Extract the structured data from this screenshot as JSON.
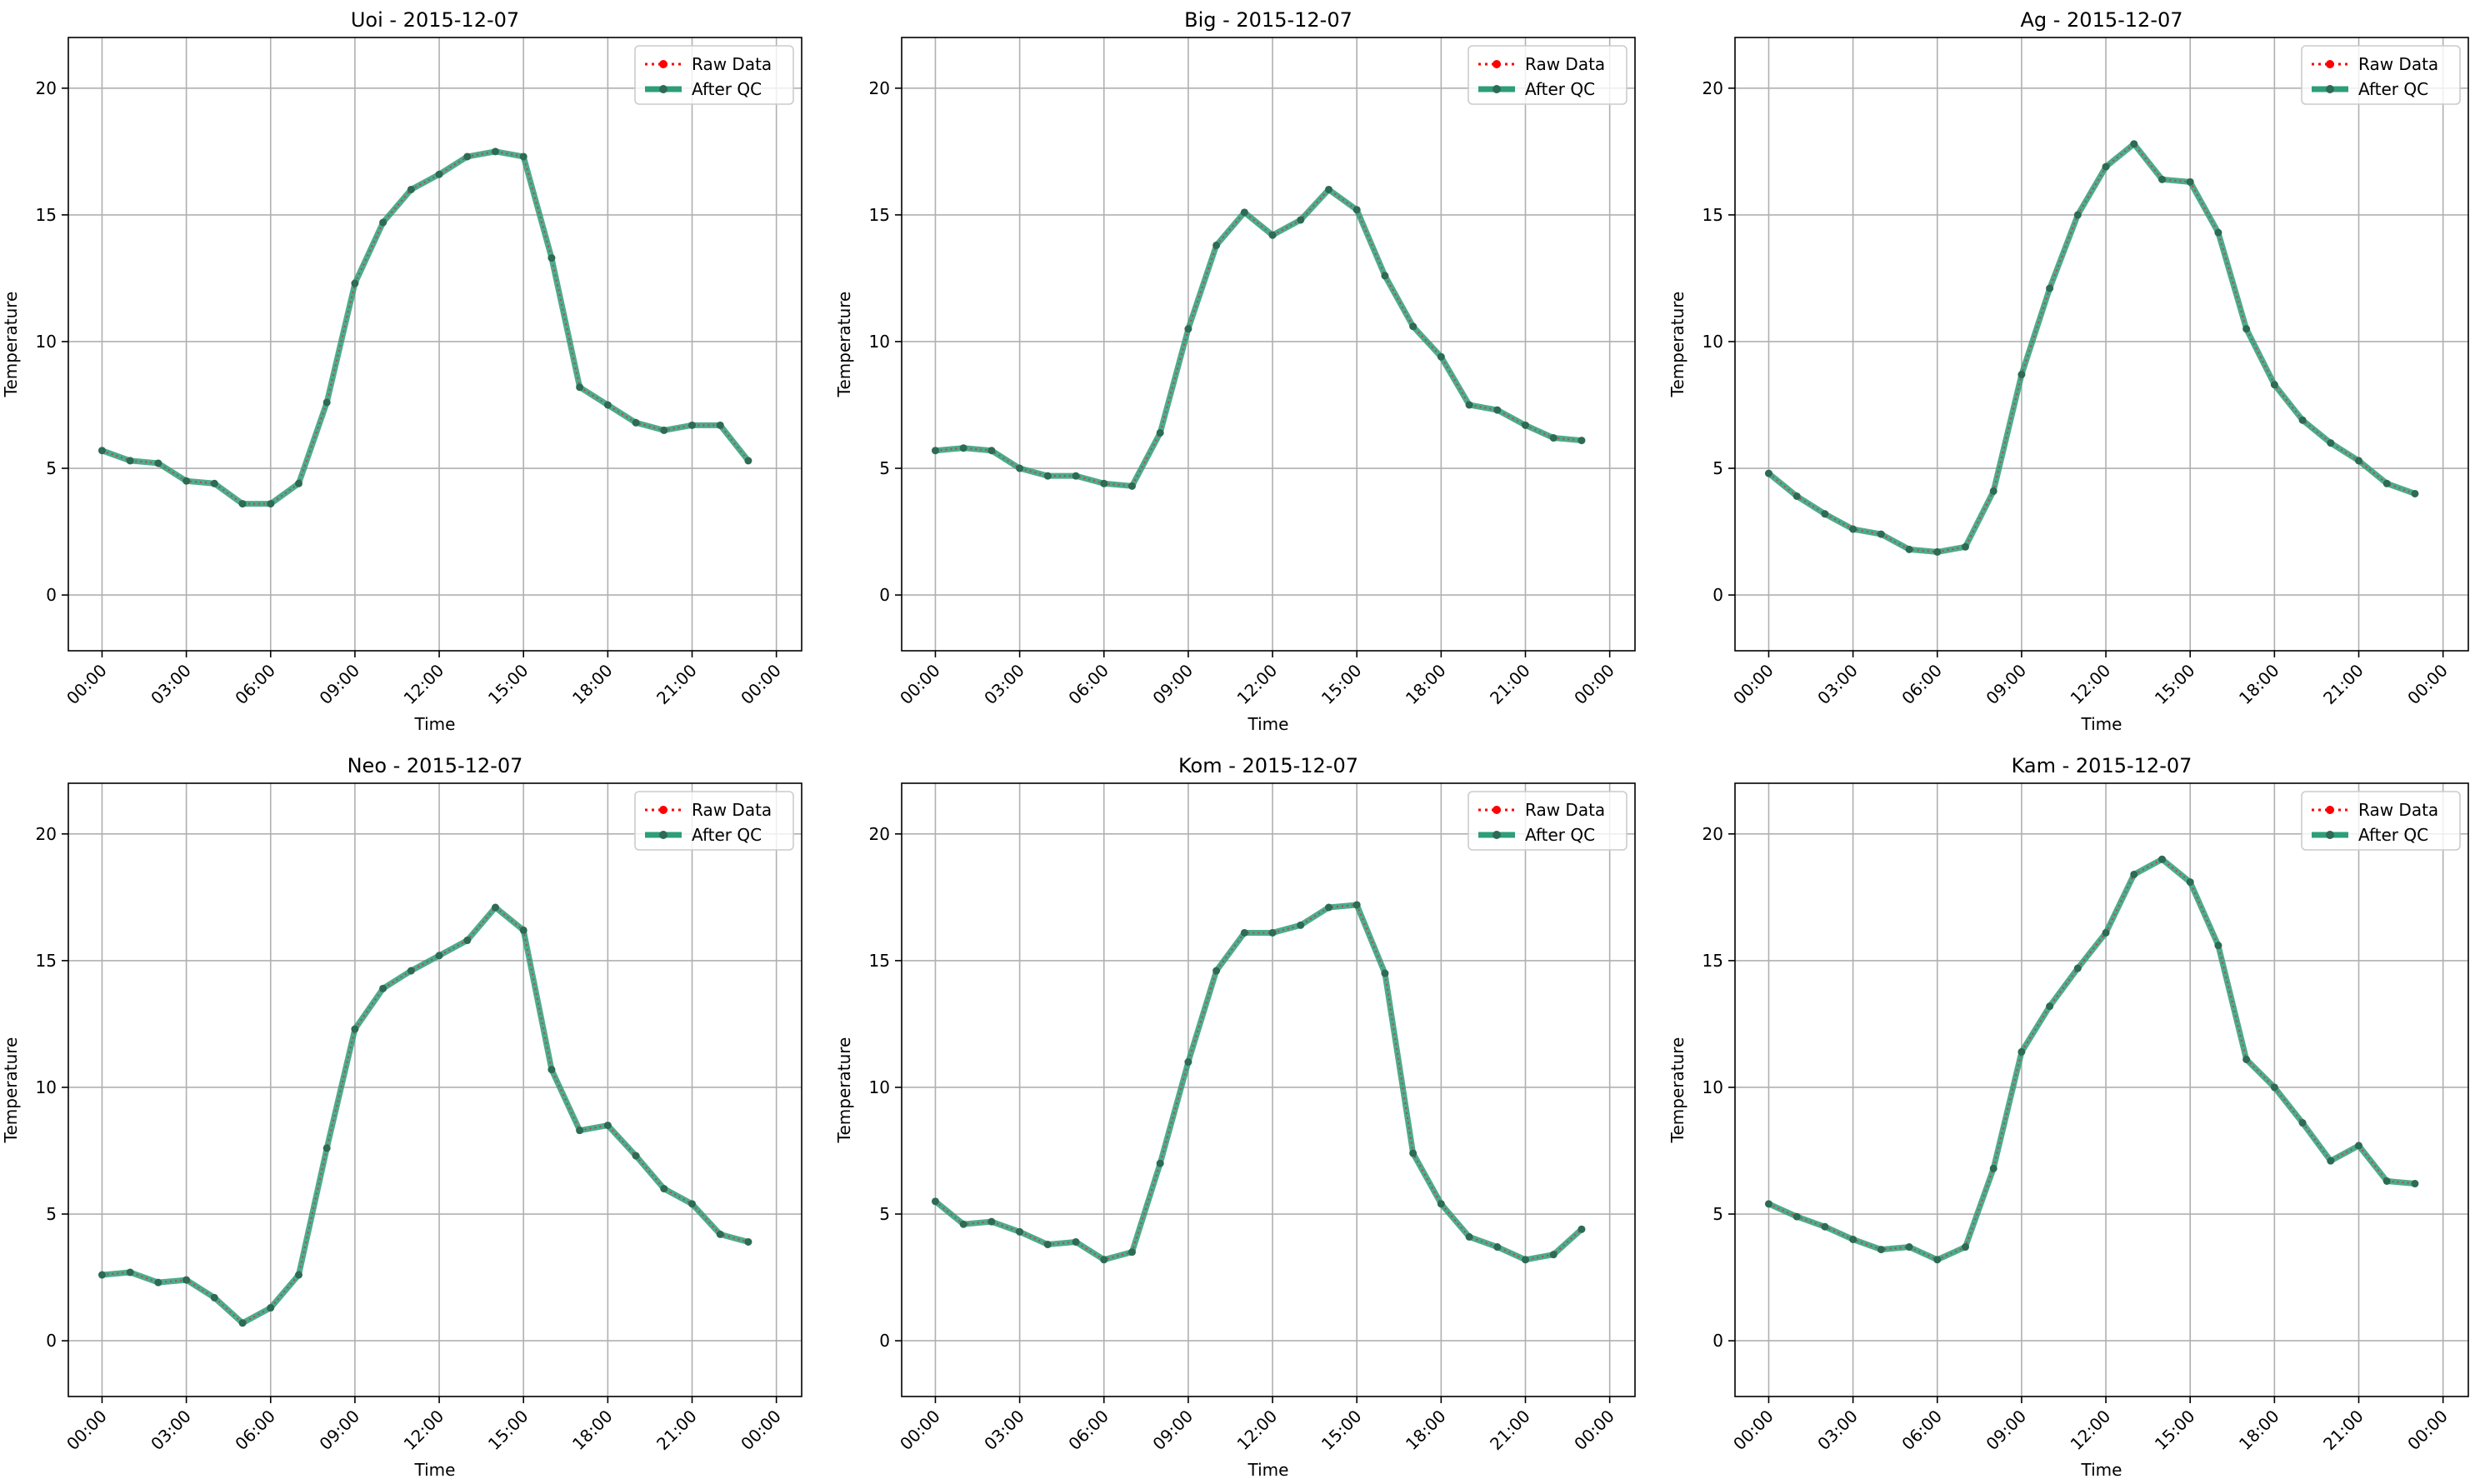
{
  "figure": {
    "background": "#ffffff",
    "colors": {
      "raw": "#ff0000",
      "qc": "#2e9e7a",
      "qc_marker": "#2d6b55",
      "grid": "#b0b0b0",
      "axis": "#000000"
    }
  },
  "chart_data": [
    {
      "type": "line",
      "title": "Uoi - 2015-12-07",
      "xlabel": "Time",
      "ylabel": "Temperature",
      "x_ticks": [
        "00:00",
        "03:00",
        "06:00",
        "09:00",
        "12:00",
        "15:00",
        "18:00",
        "21:00",
        "00:00"
      ],
      "y_ticks": [
        "0",
        "5",
        "10",
        "15",
        "20"
      ],
      "xlim_hours": [
        -1.2,
        24.9
      ],
      "ylim": [
        -2.2,
        22.0
      ],
      "grid": true,
      "legend": "top-right",
      "x_hours": [
        0,
        1,
        2,
        3,
        4,
        5,
        6,
        7,
        8,
        9,
        10,
        11,
        12,
        13,
        14,
        15,
        16,
        17,
        18,
        19,
        20,
        21,
        22,
        23
      ],
      "series": [
        {
          "name": "Raw Data",
          "style": "dotted",
          "values": [
            5.7,
            5.3,
            5.2,
            4.5,
            4.4,
            3.6,
            3.6,
            4.4,
            7.6,
            12.3,
            14.7,
            16.0,
            16.6,
            17.3,
            17.5,
            17.3,
            13.3,
            8.2,
            7.5,
            6.8,
            6.5,
            6.7,
            6.7,
            5.3
          ]
        },
        {
          "name": "After QC",
          "style": "solid",
          "values": [
            5.7,
            5.3,
            5.2,
            4.5,
            4.4,
            3.6,
            3.6,
            4.4,
            7.6,
            12.3,
            14.7,
            16.0,
            16.6,
            17.3,
            17.5,
            17.3,
            13.3,
            8.2,
            7.5,
            6.8,
            6.5,
            6.7,
            6.7,
            5.3
          ]
        }
      ]
    },
    {
      "type": "line",
      "title": "Big - 2015-12-07",
      "xlabel": "Time",
      "ylabel": "Temperature",
      "x_ticks": [
        "00:00",
        "03:00",
        "06:00",
        "09:00",
        "12:00",
        "15:00",
        "18:00",
        "21:00",
        "00:00"
      ],
      "y_ticks": [
        "0",
        "5",
        "10",
        "15",
        "20"
      ],
      "xlim_hours": [
        -1.2,
        24.9
      ],
      "ylim": [
        -2.2,
        22.0
      ],
      "grid": true,
      "legend": "top-right",
      "x_hours": [
        0,
        1,
        2,
        3,
        4,
        5,
        6,
        7,
        8,
        9,
        10,
        11,
        12,
        13,
        14,
        15,
        16,
        17,
        18,
        19,
        20,
        21,
        22,
        23
      ],
      "series": [
        {
          "name": "Raw Data",
          "style": "dotted",
          "values": [
            5.7,
            5.8,
            5.7,
            5.0,
            4.7,
            4.7,
            4.4,
            4.3,
            6.4,
            10.5,
            13.8,
            15.1,
            14.2,
            14.8,
            16.0,
            15.2,
            12.6,
            10.6,
            9.4,
            7.5,
            7.3,
            6.7,
            6.2,
            6.1
          ]
        },
        {
          "name": "After QC",
          "style": "solid",
          "values": [
            5.7,
            5.8,
            5.7,
            5.0,
            4.7,
            4.7,
            4.4,
            4.3,
            6.4,
            10.5,
            13.8,
            15.1,
            14.2,
            14.8,
            16.0,
            15.2,
            12.6,
            10.6,
            9.4,
            7.5,
            7.3,
            6.7,
            6.2,
            6.1
          ]
        }
      ]
    },
    {
      "type": "line",
      "title": "Ag - 2015-12-07",
      "xlabel": "Time",
      "ylabel": "Temperature",
      "x_ticks": [
        "00:00",
        "03:00",
        "06:00",
        "09:00",
        "12:00",
        "15:00",
        "18:00",
        "21:00",
        "00:00"
      ],
      "y_ticks": [
        "0",
        "5",
        "10",
        "15",
        "20"
      ],
      "xlim_hours": [
        -1.2,
        24.9
      ],
      "ylim": [
        -2.2,
        22.0
      ],
      "grid": true,
      "legend": "top-right",
      "x_hours": [
        0,
        1,
        2,
        3,
        4,
        5,
        6,
        7,
        8,
        9,
        10,
        11,
        12,
        13,
        14,
        15,
        16,
        17,
        18,
        19,
        20,
        21,
        22,
        23
      ],
      "series": [
        {
          "name": "Raw Data",
          "style": "dotted",
          "values": [
            4.8,
            3.9,
            3.2,
            2.6,
            2.4,
            1.8,
            1.7,
            1.9,
            4.1,
            8.7,
            12.1,
            15.0,
            16.9,
            17.8,
            16.4,
            16.3,
            14.3,
            10.5,
            8.3,
            6.9,
            6.0,
            5.3,
            4.4,
            4.0
          ]
        },
        {
          "name": "After QC",
          "style": "solid",
          "values": [
            4.8,
            3.9,
            3.2,
            2.6,
            2.4,
            1.8,
            1.7,
            1.9,
            4.1,
            8.7,
            12.1,
            15.0,
            16.9,
            17.8,
            16.4,
            16.3,
            14.3,
            10.5,
            8.3,
            6.9,
            6.0,
            5.3,
            4.4,
            4.0
          ]
        }
      ]
    },
    {
      "type": "line",
      "title": "Neo - 2015-12-07",
      "xlabel": "Time",
      "ylabel": "Temperature",
      "x_ticks": [
        "00:00",
        "03:00",
        "06:00",
        "09:00",
        "12:00",
        "15:00",
        "18:00",
        "21:00",
        "00:00"
      ],
      "y_ticks": [
        "0",
        "5",
        "10",
        "15",
        "20"
      ],
      "xlim_hours": [
        -1.2,
        24.9
      ],
      "ylim": [
        -2.2,
        22.0
      ],
      "grid": true,
      "legend": "top-right",
      "x_hours": [
        0,
        1,
        2,
        3,
        4,
        5,
        6,
        7,
        8,
        9,
        10,
        11,
        12,
        13,
        14,
        15,
        16,
        17,
        18,
        19,
        20,
        21,
        22,
        23
      ],
      "series": [
        {
          "name": "Raw Data",
          "style": "dotted",
          "values": [
            2.6,
            2.7,
            2.3,
            2.4,
            1.7,
            0.7,
            1.3,
            2.6,
            7.6,
            12.3,
            13.9,
            14.6,
            15.2,
            15.8,
            17.1,
            16.2,
            10.7,
            8.3,
            8.5,
            7.3,
            6.0,
            5.4,
            4.2,
            3.9
          ]
        },
        {
          "name": "After QC",
          "style": "solid",
          "values": [
            2.6,
            2.7,
            2.3,
            2.4,
            1.7,
            0.7,
            1.3,
            2.6,
            7.6,
            12.3,
            13.9,
            14.6,
            15.2,
            15.8,
            17.1,
            16.2,
            10.7,
            8.3,
            8.5,
            7.3,
            6.0,
            5.4,
            4.2,
            3.9
          ]
        }
      ]
    },
    {
      "type": "line",
      "title": "Kom - 2015-12-07",
      "xlabel": "Time",
      "ylabel": "Temperature",
      "x_ticks": [
        "00:00",
        "03:00",
        "06:00",
        "09:00",
        "12:00",
        "15:00",
        "18:00",
        "21:00",
        "00:00"
      ],
      "y_ticks": [
        "0",
        "5",
        "10",
        "15",
        "20"
      ],
      "xlim_hours": [
        -1.2,
        24.9
      ],
      "ylim": [
        -2.2,
        22.0
      ],
      "grid": true,
      "legend": "top-right",
      "x_hours": [
        0,
        1,
        2,
        3,
        4,
        5,
        6,
        7,
        8,
        9,
        10,
        11,
        12,
        13,
        14,
        15,
        16,
        17,
        18,
        19,
        20,
        21,
        22,
        23
      ],
      "series": [
        {
          "name": "Raw Data",
          "style": "dotted",
          "values": [
            5.5,
            4.6,
            4.7,
            4.3,
            3.8,
            3.9,
            3.2,
            3.5,
            7.0,
            11.0,
            14.6,
            16.1,
            16.1,
            16.4,
            17.1,
            17.2,
            14.5,
            7.4,
            5.4,
            4.1,
            3.7,
            3.2,
            3.4,
            4.4
          ]
        },
        {
          "name": "After QC",
          "style": "solid",
          "values": [
            5.5,
            4.6,
            4.7,
            4.3,
            3.8,
            3.9,
            3.2,
            3.5,
            7.0,
            11.0,
            14.6,
            16.1,
            16.1,
            16.4,
            17.1,
            17.2,
            14.5,
            7.4,
            5.4,
            4.1,
            3.7,
            3.2,
            3.4,
            4.4
          ]
        }
      ]
    },
    {
      "type": "line",
      "title": "Kam - 2015-12-07",
      "xlabel": "Time",
      "ylabel": "Temperature",
      "x_ticks": [
        "00:00",
        "03:00",
        "06:00",
        "09:00",
        "12:00",
        "15:00",
        "18:00",
        "21:00",
        "00:00"
      ],
      "y_ticks": [
        "0",
        "5",
        "10",
        "15",
        "20"
      ],
      "xlim_hours": [
        -1.2,
        24.9
      ],
      "ylim": [
        -2.2,
        22.0
      ],
      "grid": true,
      "legend": "top-right",
      "x_hours": [
        0,
        1,
        2,
        3,
        4,
        5,
        6,
        7,
        8,
        9,
        10,
        11,
        12,
        13,
        14,
        15,
        16,
        17,
        18,
        19,
        20,
        21,
        22,
        23
      ],
      "series": [
        {
          "name": "Raw Data",
          "style": "dotted",
          "values": [
            5.4,
            4.9,
            4.5,
            4.0,
            3.6,
            3.7,
            3.2,
            3.7,
            6.8,
            11.4,
            13.2,
            14.7,
            16.1,
            18.4,
            19.0,
            18.1,
            15.6,
            11.1,
            10.0,
            8.6,
            7.1,
            7.7,
            6.3,
            6.2
          ]
        },
        {
          "name": "After QC",
          "style": "solid",
          "values": [
            5.4,
            4.9,
            4.5,
            4.0,
            3.6,
            3.7,
            3.2,
            3.7,
            6.8,
            11.4,
            13.2,
            14.7,
            16.1,
            18.4,
            19.0,
            18.1,
            15.6,
            11.1,
            10.0,
            8.6,
            7.1,
            7.7,
            6.3,
            6.2
          ]
        }
      ]
    }
  ]
}
